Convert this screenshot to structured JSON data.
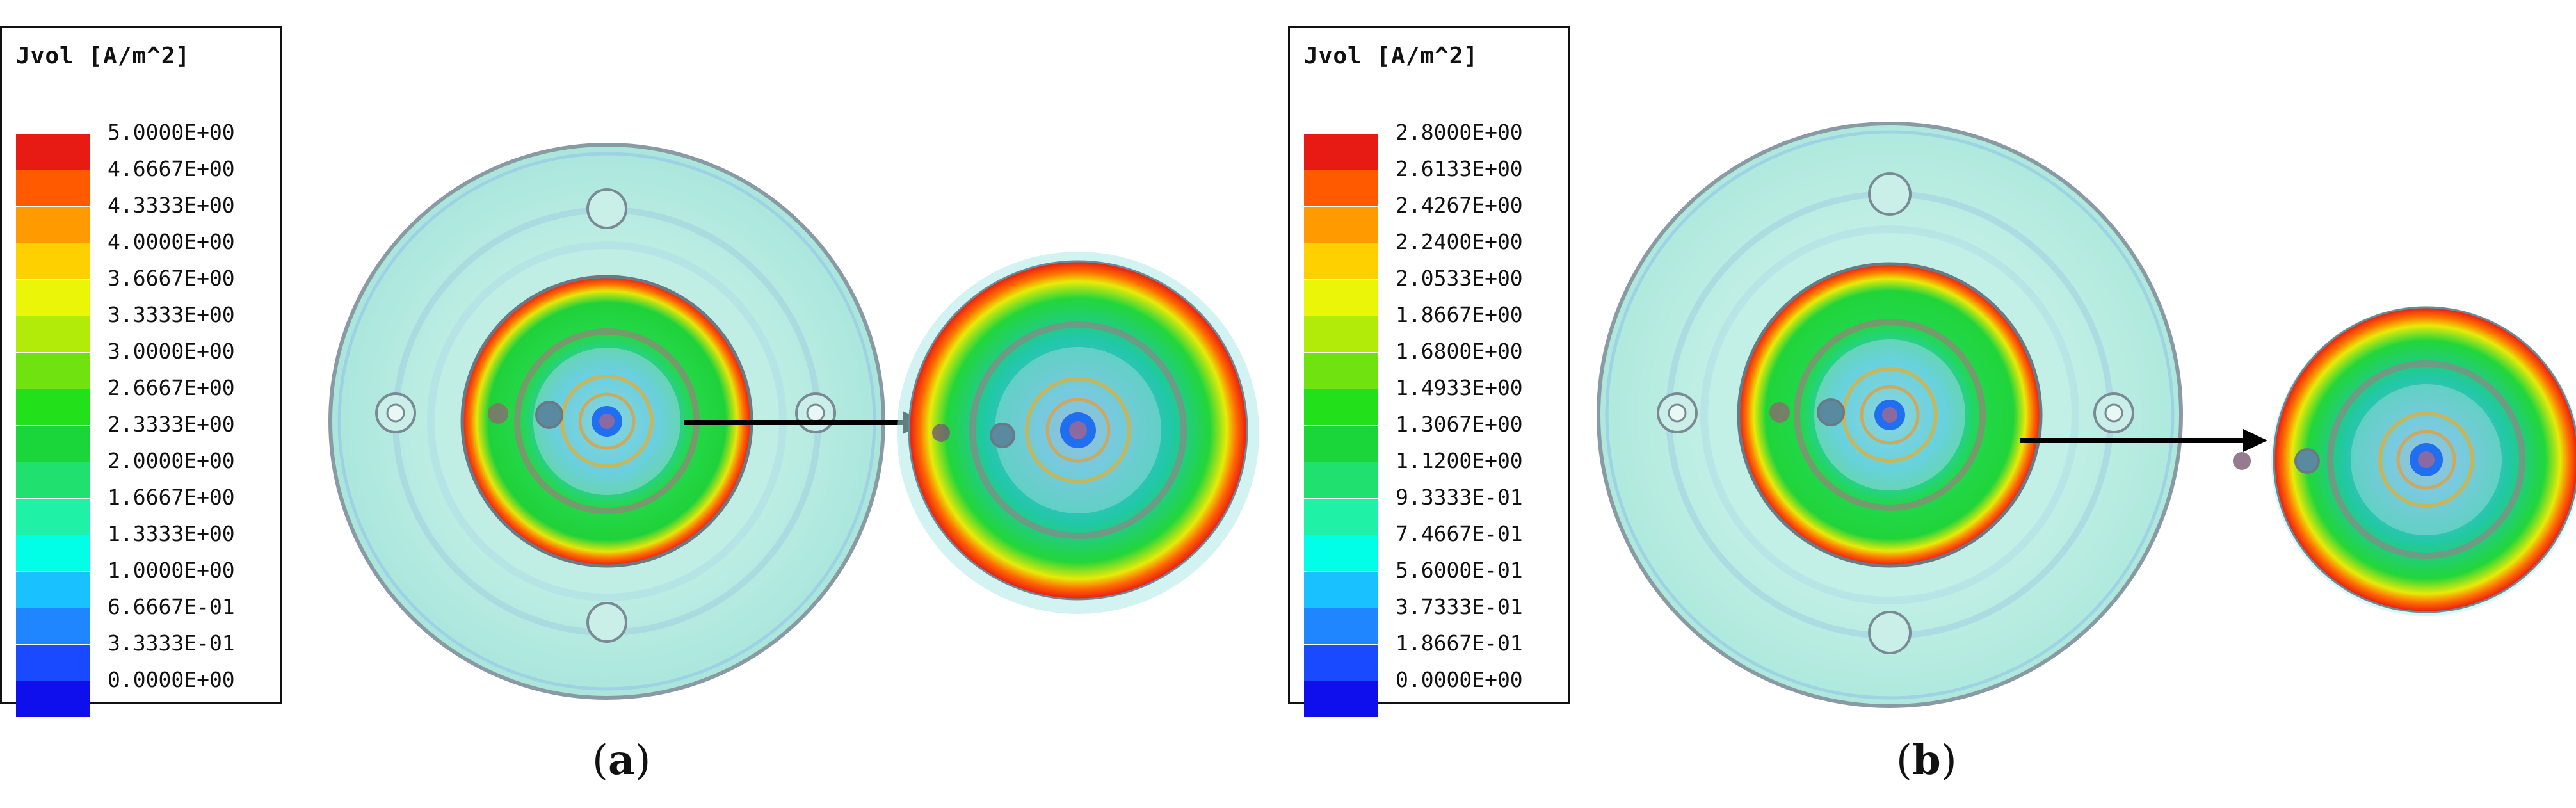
{
  "colors": [
    "#0f0fee",
    "#1a4aff",
    "#1f86ff",
    "#19c2ff",
    "#00ffe6",
    "#1ff2a6",
    "#20e070",
    "#1bd63b",
    "#22e01a",
    "#6fe20f",
    "#b2ea09",
    "#eaf507",
    "#ffd000",
    "#ff9a00",
    "#ff5a00",
    "#e81a14"
  ],
  "panels": [
    {
      "id": "a",
      "legend_title": "Jvol [A/m^2]",
      "ticks": [
        "5.0000E+00",
        "4.6667E+00",
        "4.3333E+00",
        "4.0000E+00",
        "3.6667E+00",
        "3.3333E+00",
        "3.0000E+00",
        "2.6667E+00",
        "2.3333E+00",
        "2.0000E+00",
        "1.6667E+00",
        "1.3333E+00",
        "1.0000E+00",
        "6.6667E-01",
        "3.3333E-01",
        "0.0000E+00"
      ],
      "caption_letter": "a"
    },
    {
      "id": "b",
      "legend_title": "Jvol [A/m^2]",
      "ticks": [
        "2.8000E+00",
        "2.6133E+00",
        "2.4267E+00",
        "2.2400E+00",
        "2.0533E+00",
        "1.8667E+00",
        "1.6800E+00",
        "1.4933E+00",
        "1.3067E+00",
        "1.1200E+00",
        "9.3333E-01",
        "7.4667E-01",
        "5.6000E-01",
        "3.7333E-01",
        "1.8667E-01",
        "0.0000E+00"
      ],
      "caption_letter": "b"
    }
  ]
}
